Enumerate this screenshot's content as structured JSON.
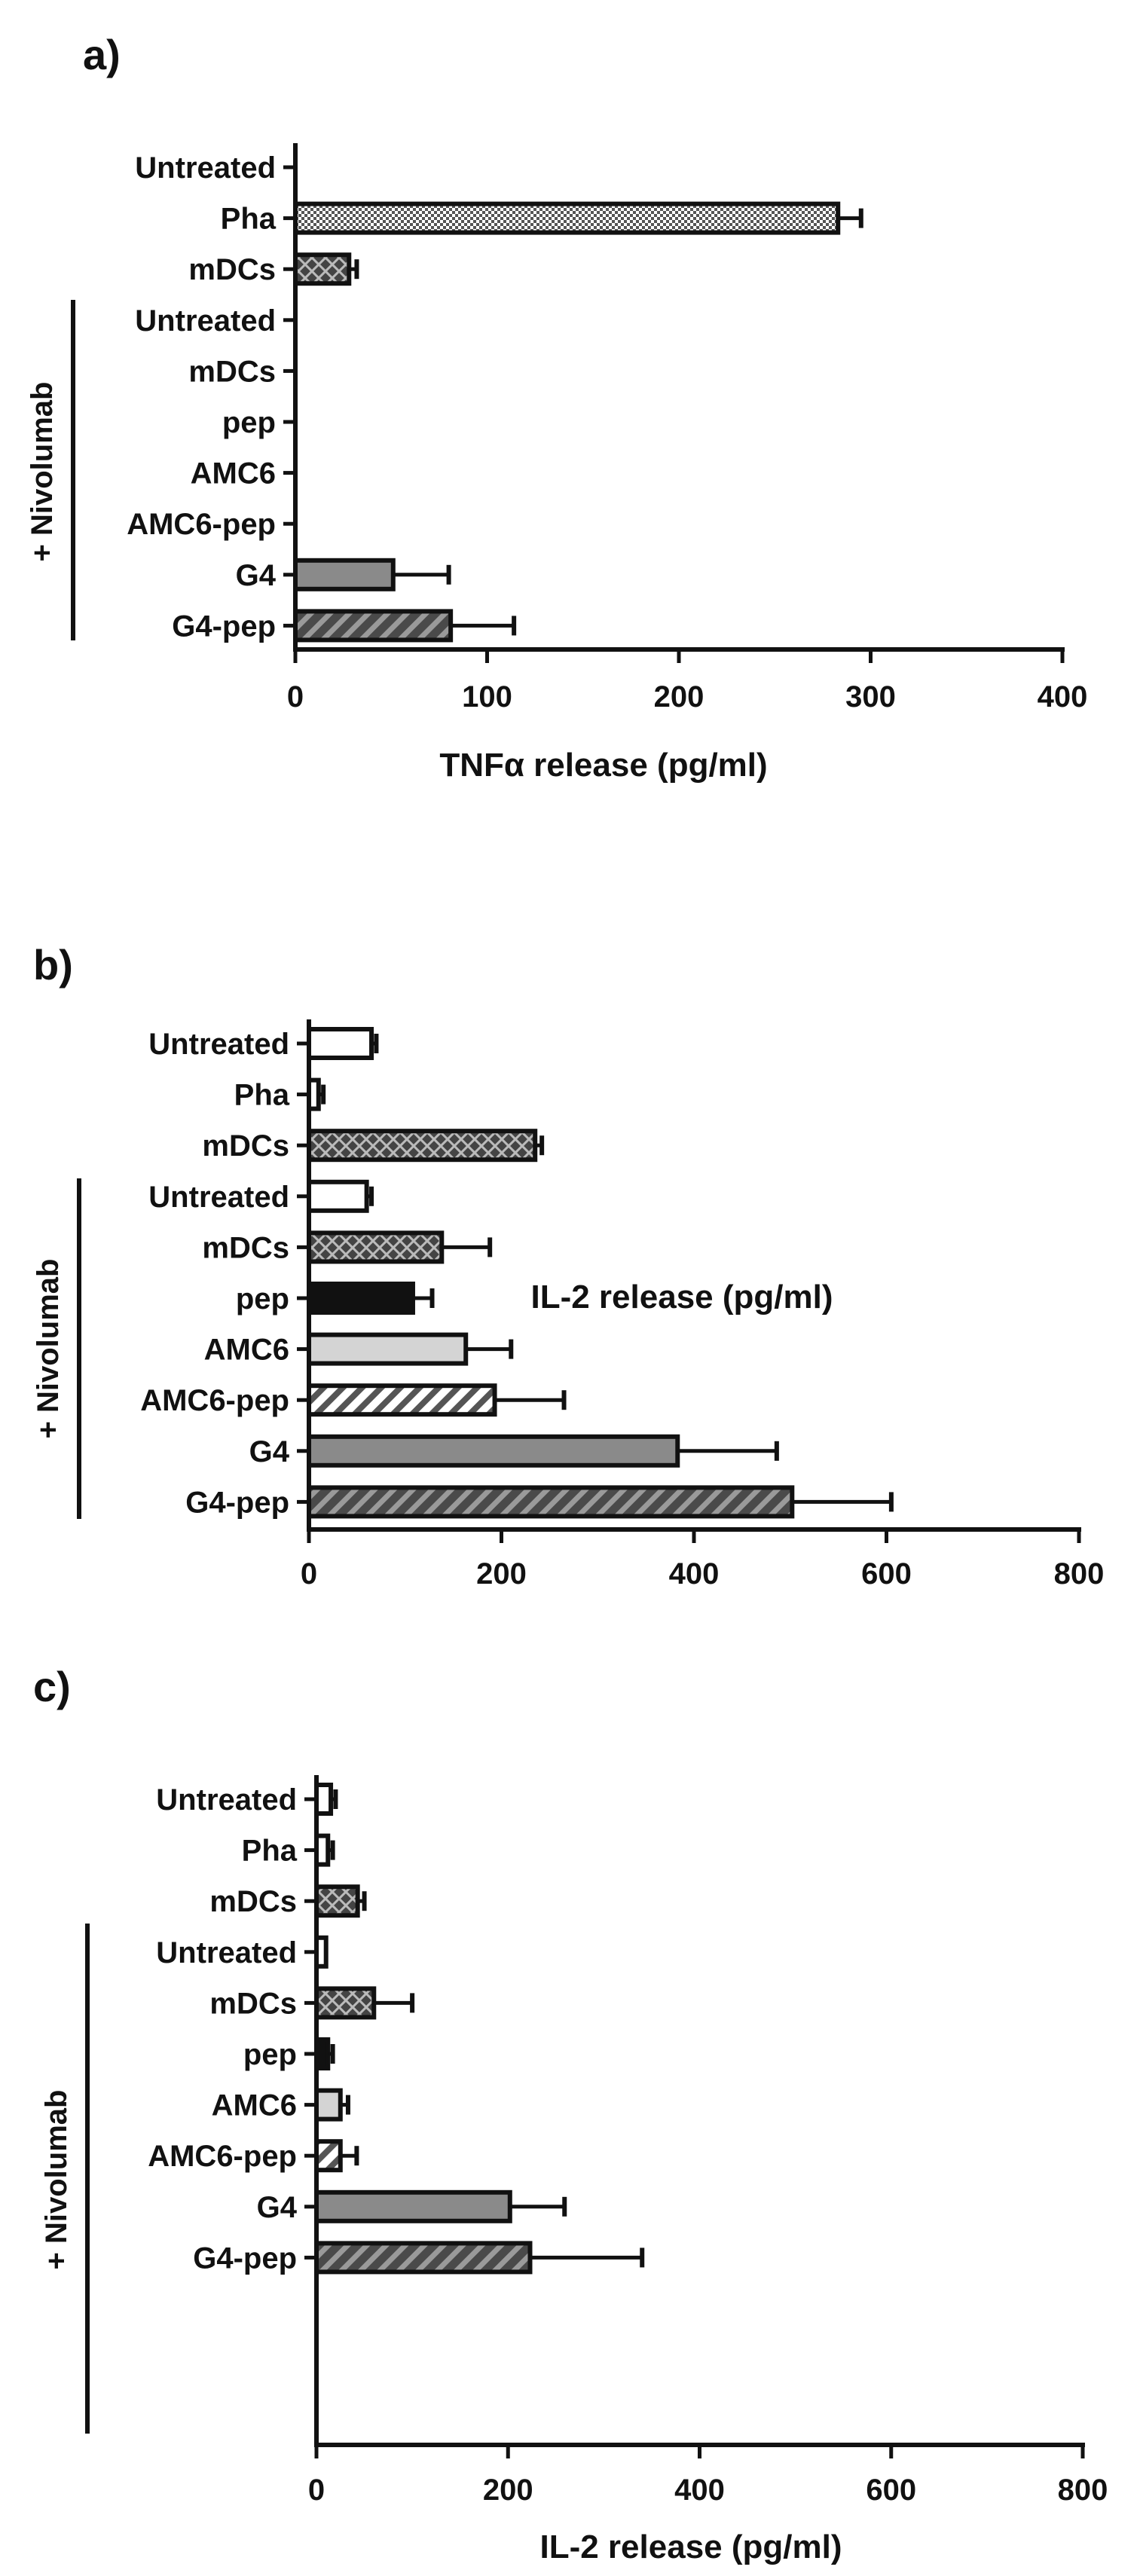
{
  "panels": [
    {
      "label": "a)",
      "bracket_label": "+ Nivolumab",
      "chart_data": {
        "type": "bar",
        "orientation": "horizontal",
        "categories": [
          "Untreated",
          "Pha",
          "mDCs",
          "Untreated",
          "mDCs",
          "pep",
          "AMC6",
          "AMC6-pep",
          "G4",
          "G4-pep"
        ],
        "values": [
          0,
          283,
          28,
          0,
          0,
          0,
          0,
          0,
          51,
          81
        ],
        "errors": [
          0,
          12,
          4,
          0,
          0,
          0,
          0,
          0,
          29,
          33
        ],
        "patterns": [
          "none",
          "checker",
          "cross",
          "none",
          "none",
          "none",
          "none",
          "none",
          "grey",
          "stripe"
        ],
        "xlabel": "TNFα release (pg/ml)",
        "xlim": [
          0,
          400
        ],
        "xticks": [
          0,
          100,
          200,
          300,
          400
        ],
        "grid": false,
        "nivolumab_group_start": 3
      }
    },
    {
      "label": "b)",
      "bracket_label": "+ Nivolumab",
      "chart_data": {
        "type": "bar",
        "orientation": "horizontal",
        "categories": [
          "Untreated",
          "Pha",
          "mDCs",
          "Untreated",
          "mDCs",
          "pep",
          "AMC6",
          "AMC6-pep",
          "G4",
          "G4-pep"
        ],
        "values": [
          65,
          10,
          235,
          60,
          138,
          108,
          163,
          193,
          383,
          502
        ],
        "errors": [
          5,
          5,
          7,
          5,
          50,
          20,
          47,
          72,
          103,
          103
        ],
        "patterns": [
          "white",
          "white",
          "cross",
          "white",
          "cross",
          "black",
          "light",
          "stripe-light",
          "grey",
          "stripe"
        ],
        "xlabel": "IL-2 release (pg/ml)",
        "xlim": [
          0,
          800
        ],
        "xticks": [
          0,
          200,
          400,
          600,
          800
        ],
        "grid": false,
        "nivolumab_group_start": 3
      }
    },
    {
      "label": "c)",
      "bracket_label": "+ Nivolumab",
      "chart_data": {
        "type": "bar",
        "orientation": "horizontal",
        "categories": [
          "Untreated",
          "Pha",
          "mDCs",
          "Untreated",
          "mDCs",
          "pep",
          "AMC6",
          "AMC6-pep",
          "G4",
          "G4-pep"
        ],
        "values": [
          15,
          12,
          43,
          10,
          60,
          12,
          25,
          25,
          202,
          223
        ],
        "errors": [
          5,
          5,
          7,
          0,
          40,
          5,
          8,
          17,
          57,
          117
        ],
        "patterns": [
          "white",
          "white",
          "cross",
          "white",
          "cross",
          "black",
          "light",
          "stripe-light",
          "grey",
          "stripe"
        ],
        "xlabel": "IL-2 release (pg/ml)",
        "xlim": [
          0,
          800
        ],
        "xticks": [
          0,
          200,
          400,
          600,
          800
        ],
        "grid": false,
        "nivolumab_group_start": 3
      }
    }
  ]
}
